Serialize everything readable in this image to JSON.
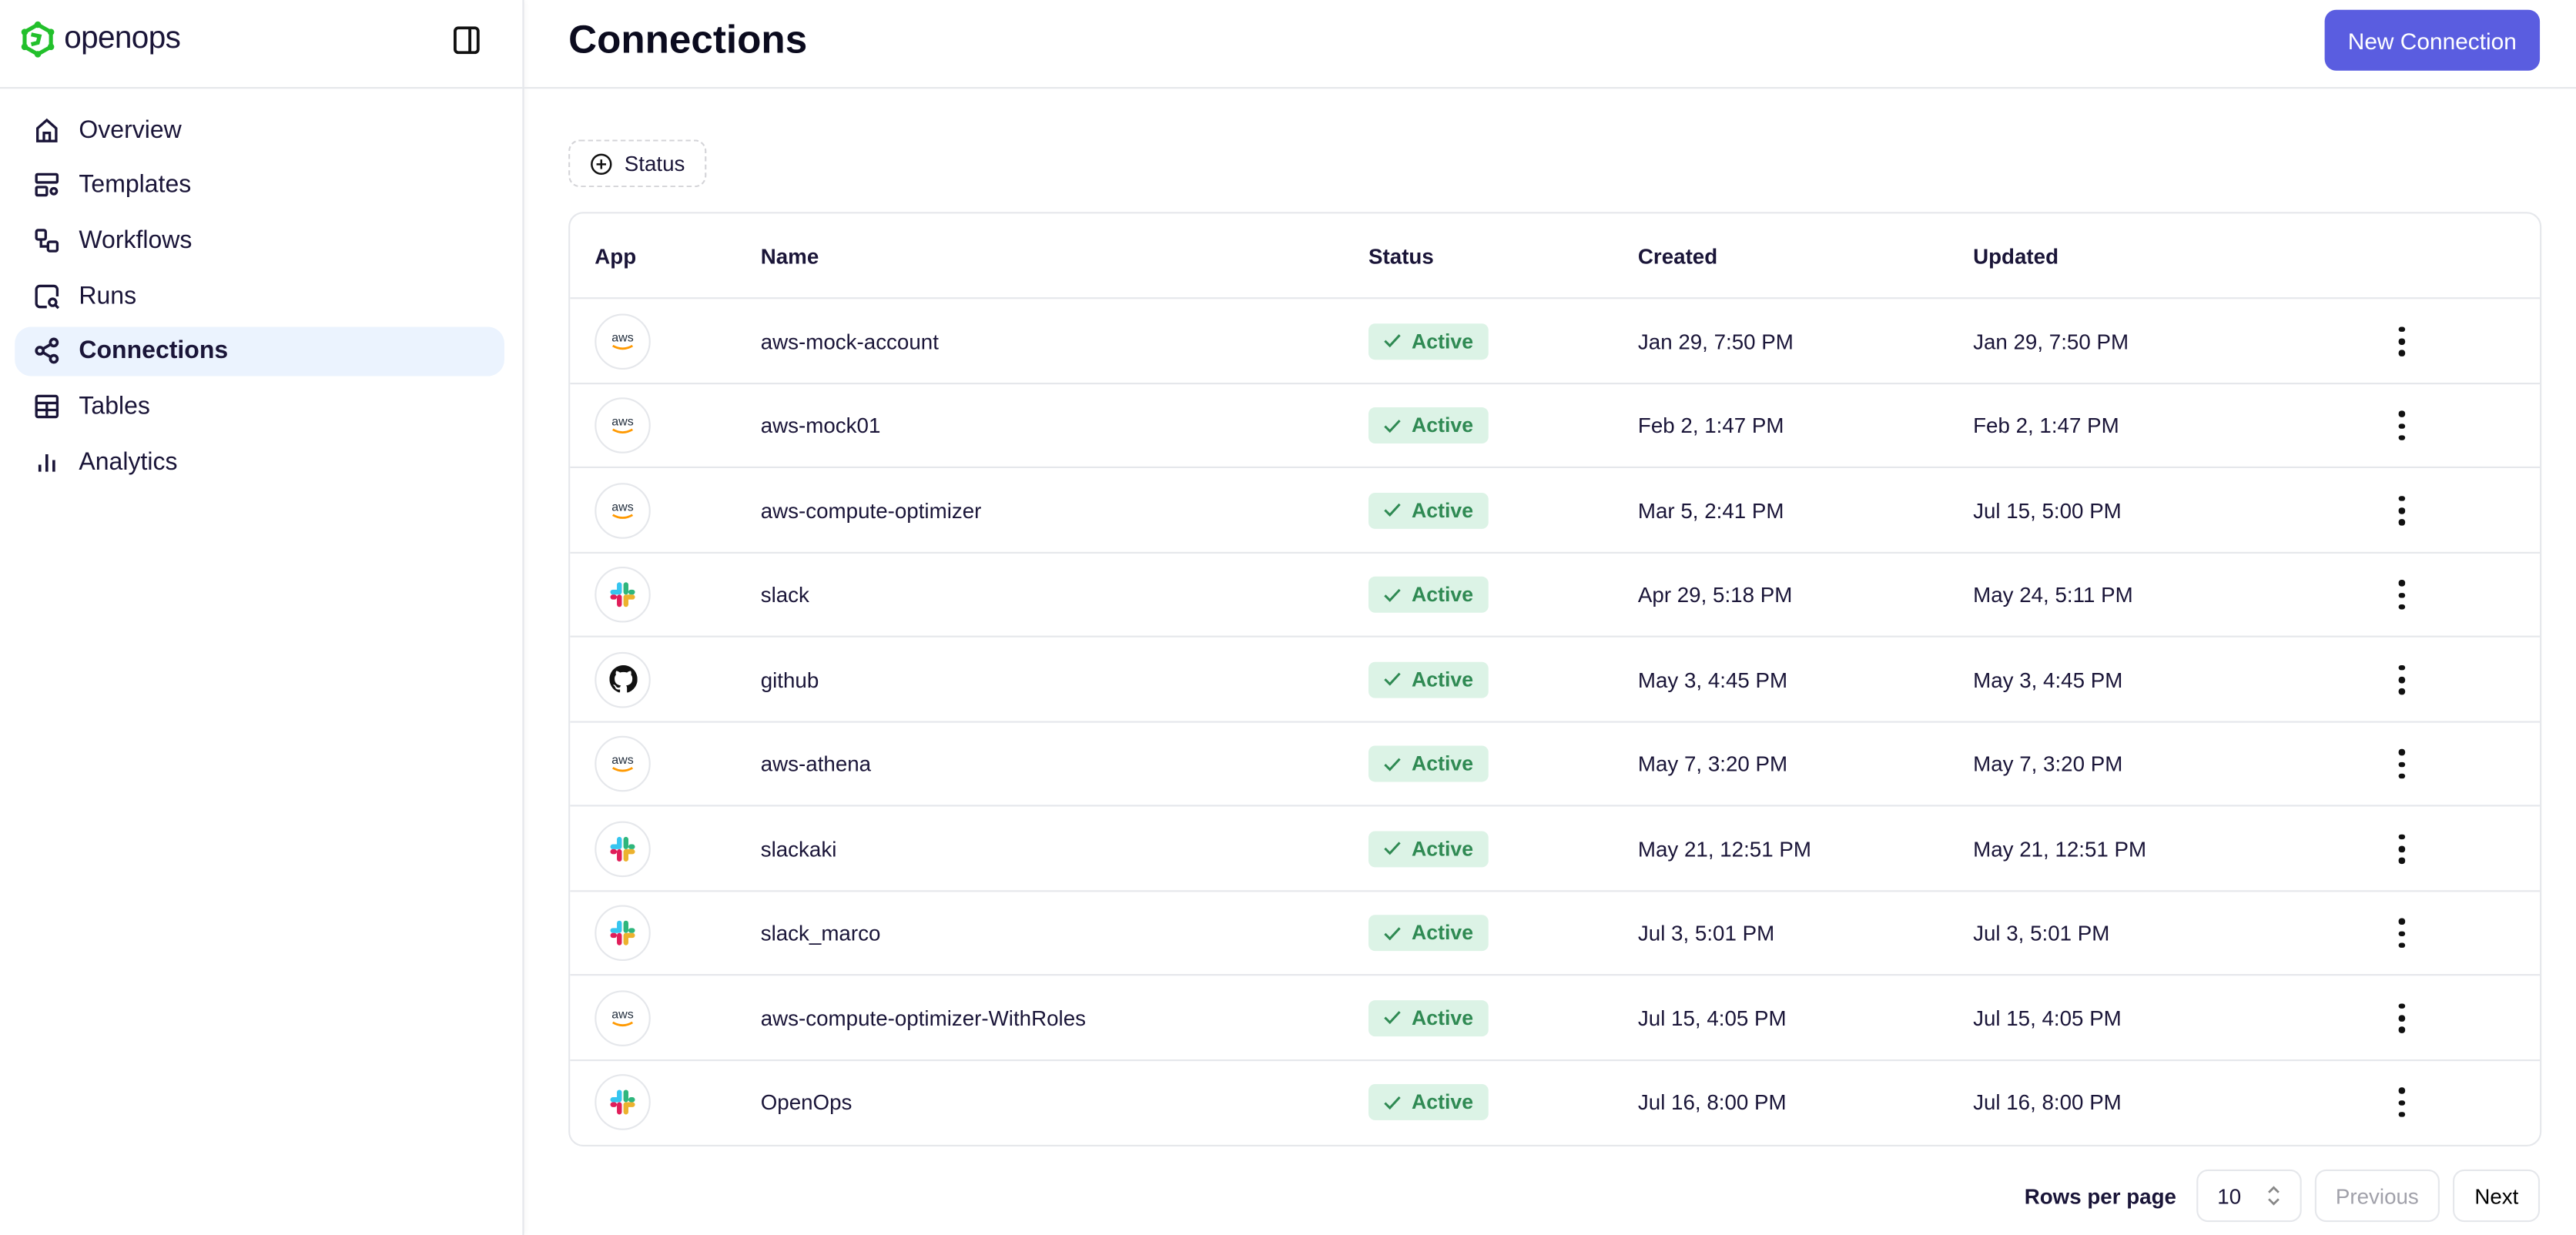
{
  "app": {
    "logo_text": "openops",
    "brand_color": "#22c02b",
    "accent_color": "#5a5de0"
  },
  "sidebar": {
    "items": [
      {
        "label": "Overview",
        "icon": "home-icon"
      },
      {
        "label": "Templates",
        "icon": "templates-icon"
      },
      {
        "label": "Workflows",
        "icon": "workflow-icon"
      },
      {
        "label": "Runs",
        "icon": "runs-search-icon"
      },
      {
        "label": "Connections",
        "icon": "share-nodes-icon",
        "active": true
      },
      {
        "label": "Tables",
        "icon": "table-icon"
      },
      {
        "label": "Analytics",
        "icon": "bar-chart-icon"
      }
    ]
  },
  "header": {
    "title": "Connections",
    "new_button": "New Connection"
  },
  "filters": {
    "status": "Status"
  },
  "table": {
    "columns": [
      "App",
      "Name",
      "Status",
      "Created",
      "Updated"
    ],
    "rows": [
      {
        "app": "aws",
        "name": "aws-mock-account",
        "status": "Active",
        "created": "Jan 29, 7:50 PM",
        "updated": "Jan 29, 7:50 PM"
      },
      {
        "app": "aws",
        "name": "aws-mock01",
        "status": "Active",
        "created": "Feb 2, 1:47 PM",
        "updated": "Feb 2, 1:47 PM"
      },
      {
        "app": "aws",
        "name": "aws-compute-optimizer",
        "status": "Active",
        "created": "Mar 5, 2:41 PM",
        "updated": "Jul 15, 5:00 PM"
      },
      {
        "app": "slack",
        "name": "slack",
        "status": "Active",
        "created": "Apr 29, 5:18 PM",
        "updated": "May 24, 5:11 PM"
      },
      {
        "app": "github",
        "name": "github",
        "status": "Active",
        "created": "May 3, 4:45 PM",
        "updated": "May 3, 4:45 PM"
      },
      {
        "app": "aws",
        "name": "aws-athena",
        "status": "Active",
        "created": "May 7, 3:20 PM",
        "updated": "May 7, 3:20 PM"
      },
      {
        "app": "slack",
        "name": "slackaki",
        "status": "Active",
        "created": "May 21, 12:51 PM",
        "updated": "May 21, 12:51 PM"
      },
      {
        "app": "slack",
        "name": "slack_marco",
        "status": "Active",
        "created": "Jul 3, 5:01 PM",
        "updated": "Jul 3, 5:01 PM"
      },
      {
        "app": "aws",
        "name": "aws-compute-optimizer-WithRoles",
        "status": "Active",
        "created": "Jul 15, 4:05 PM",
        "updated": "Jul 15, 4:05 PM"
      },
      {
        "app": "slack",
        "name": "OpenOps",
        "status": "Active",
        "created": "Jul 16, 8:00 PM",
        "updated": "Jul 16, 8:00 PM"
      }
    ]
  },
  "pagination": {
    "rows_per_page_label": "Rows per page",
    "rows_per_page": "10",
    "previous": "Previous",
    "next": "Next"
  }
}
